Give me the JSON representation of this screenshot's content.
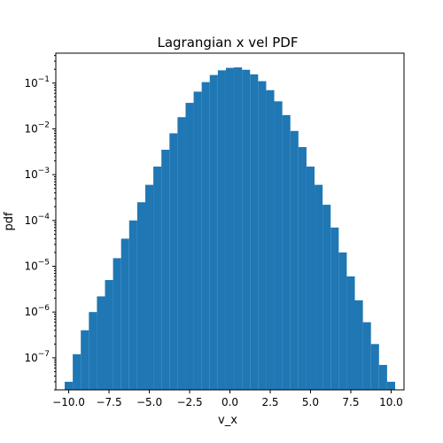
{
  "chart_data": {
    "type": "bar",
    "title": "Lagrangian x vel PDF",
    "xlabel": "v_x",
    "ylabel": "pdf",
    "xlim": [
      -10.8,
      10.8
    ],
    "ylim": [
      2e-08,
      0.45
    ],
    "yscale": "log",
    "grid": false,
    "color": "#1f77b4",
    "x_ticks": [
      -10.0,
      -7.5,
      -5.0,
      -2.5,
      0.0,
      2.5,
      5.0,
      7.5,
      10.0
    ],
    "x_tick_labels": [
      "−10.0",
      "−7.5",
      "−5.0",
      "−2.5",
      "0.0",
      "2.5",
      "5.0",
      "7.5",
      "10.0"
    ],
    "y_ticks": [
      {
        "value": 0.1,
        "base": "10",
        "exp": "−1"
      },
      {
        "value": 0.01,
        "base": "10",
        "exp": "−2"
      },
      {
        "value": 0.001,
        "base": "10",
        "exp": "−3"
      },
      {
        "value": 0.0001,
        "base": "10",
        "exp": "−4"
      },
      {
        "value": 1e-05,
        "base": "10",
        "exp": "−5"
      },
      {
        "value": 1e-06,
        "base": "10",
        "exp": "−6"
      },
      {
        "value": 1e-07,
        "base": "10",
        "exp": "−7"
      }
    ],
    "x": [
      -10.0,
      -9.5,
      -9.0,
      -8.5,
      -8.0,
      -7.5,
      -7.0,
      -6.5,
      -6.0,
      -5.5,
      -5.0,
      -4.5,
      -4.0,
      -3.5,
      -3.0,
      -2.5,
      -2.0,
      -1.5,
      -1.0,
      -0.5,
      0.0,
      0.5,
      1.0,
      1.5,
      2.0,
      2.5,
      3.0,
      3.5,
      4.0,
      4.5,
      5.0,
      5.5,
      6.0,
      6.5,
      7.0,
      7.5,
      8.0,
      8.5,
      9.0,
      9.5,
      10.0
    ],
    "values": [
      3e-08,
      1.2e-07,
      4e-07,
      1e-06,
      2.2e-06,
      5e-06,
      1.5e-05,
      4e-05,
      0.0001,
      0.00025,
      0.0006,
      0.0015,
      0.0035,
      0.008,
      0.018,
      0.037,
      0.065,
      0.105,
      0.15,
      0.19,
      0.215,
      0.22,
      0.195,
      0.155,
      0.11,
      0.07,
      0.04,
      0.02,
      0.009,
      0.004,
      0.0015,
      0.0006,
      0.00022,
      7e-05,
      2e-05,
      6e-06,
      1.8e-06,
      6e-07,
      2e-07,
      7e-08,
      3e-08
    ]
  }
}
